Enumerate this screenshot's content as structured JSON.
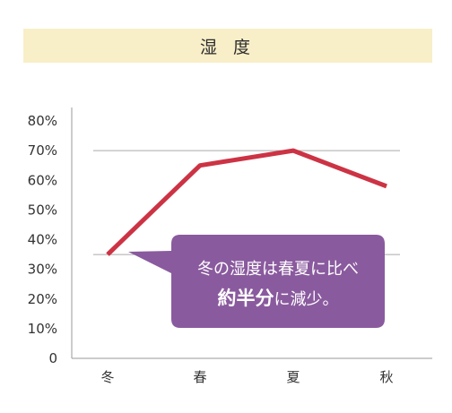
{
  "header": {
    "title": "湿 度"
  },
  "chart_data": {
    "type": "line",
    "title": "湿 度",
    "categories": [
      "冬",
      "春",
      "夏",
      "秋"
    ],
    "series": [
      {
        "values": [
          35,
          65,
          70,
          58
        ]
      }
    ],
    "ylim": [
      0,
      80
    ],
    "yticks": [
      "0",
      "10%",
      "20%",
      "30%",
      "40%",
      "50%",
      "60%",
      "70%",
      "80%"
    ],
    "reference_lines": [
      70,
      35
    ],
    "grid": false,
    "line_color": "#cc3344",
    "callout_color": "#8a5a9e"
  },
  "callout": {
    "line1": "冬の湿度は春夏に比べ",
    "line2_bold": "約半分",
    "line2_rest": "に減少。"
  }
}
